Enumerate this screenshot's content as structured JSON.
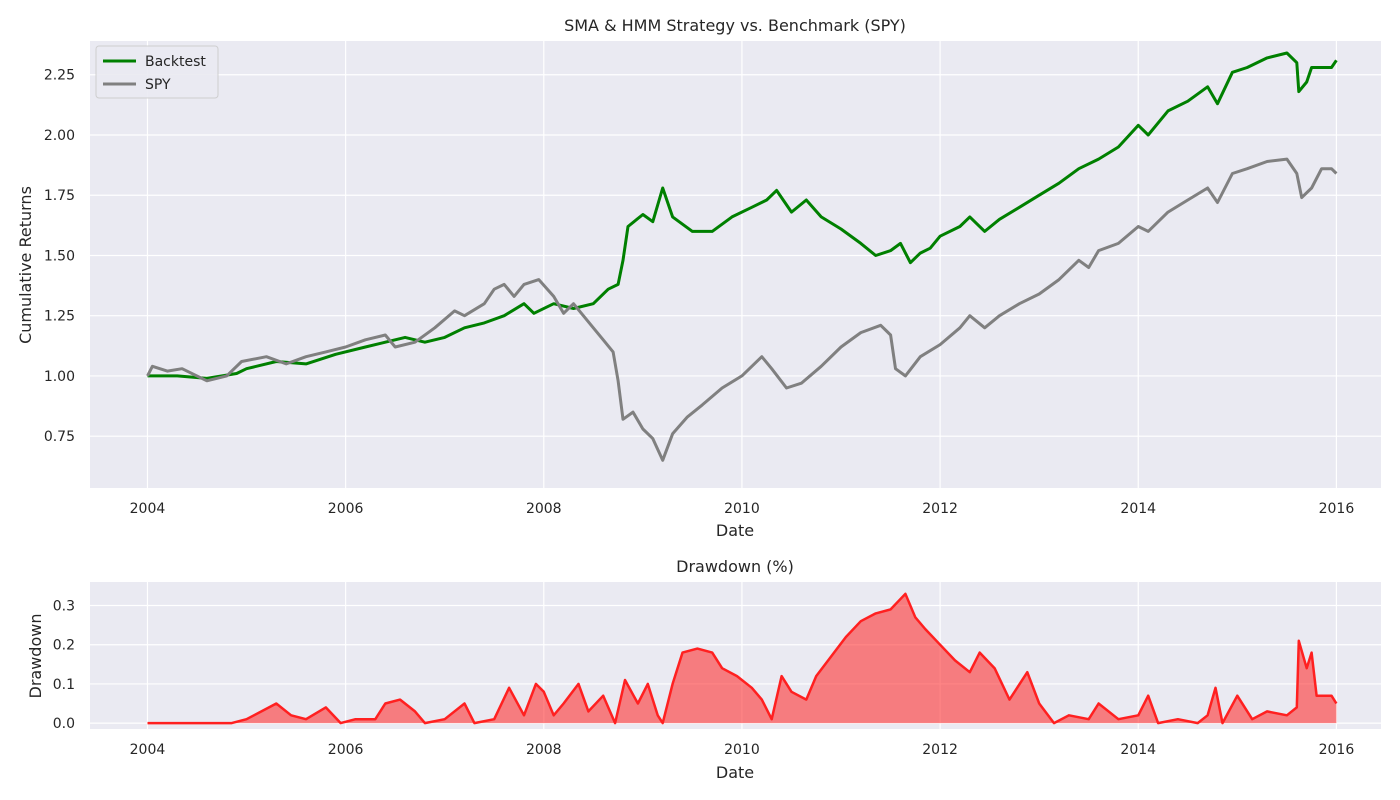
{
  "chart_data": [
    {
      "type": "line",
      "title": "SMA & HMM Strategy vs. Benchmark (SPY)",
      "xlabel": "Date",
      "ylabel": "Cumulative Returns",
      "xlim": [
        2003.42,
        2016.45
      ],
      "ylim": [
        0.535,
        2.39
      ],
      "x_ticks": [
        2004,
        2006,
        2008,
        2010,
        2012,
        2014,
        2016
      ],
      "x_tick_labels": [
        "2004",
        "2006",
        "2008",
        "2010",
        "2012",
        "2014",
        "2016"
      ],
      "y_ticks": [
        0.75,
        1.0,
        1.25,
        1.5,
        1.75,
        2.0,
        2.25
      ],
      "y_tick_labels": [
        "0.75",
        "1.00",
        "1.25",
        "1.50",
        "1.75",
        "2.00",
        "2.25"
      ],
      "grid": true,
      "legend_placement": "top-left",
      "series": [
        {
          "name": "Backtest",
          "color": "#008000",
          "points": [
            [
              2004.0,
              1.0
            ],
            [
              2004.3,
              1.0
            ],
            [
              2004.6,
              0.99
            ],
            [
              2004.9,
              1.01
            ],
            [
              2005.0,
              1.03
            ],
            [
              2005.3,
              1.06
            ],
            [
              2005.6,
              1.05
            ],
            [
              2005.9,
              1.09
            ],
            [
              2006.2,
              1.12
            ],
            [
              2006.4,
              1.14
            ],
            [
              2006.6,
              1.16
            ],
            [
              2006.8,
              1.14
            ],
            [
              2007.0,
              1.16
            ],
            [
              2007.2,
              1.2
            ],
            [
              2007.4,
              1.22
            ],
            [
              2007.6,
              1.25
            ],
            [
              2007.8,
              1.3
            ],
            [
              2007.9,
              1.26
            ],
            [
              2008.1,
              1.3
            ],
            [
              2008.3,
              1.28
            ],
            [
              2008.5,
              1.3
            ],
            [
              2008.65,
              1.36
            ],
            [
              2008.75,
              1.38
            ],
            [
              2008.8,
              1.48
            ],
            [
              2008.85,
              1.62
            ],
            [
              2009.0,
              1.67
            ],
            [
              2009.1,
              1.64
            ],
            [
              2009.2,
              1.78
            ],
            [
              2009.3,
              1.66
            ],
            [
              2009.5,
              1.6
            ],
            [
              2009.7,
              1.6
            ],
            [
              2009.9,
              1.66
            ],
            [
              2010.1,
              1.7
            ],
            [
              2010.25,
              1.73
            ],
            [
              2010.35,
              1.77
            ],
            [
              2010.5,
              1.68
            ],
            [
              2010.65,
              1.73
            ],
            [
              2010.8,
              1.66
            ],
            [
              2011.0,
              1.61
            ],
            [
              2011.2,
              1.55
            ],
            [
              2011.35,
              1.5
            ],
            [
              2011.5,
              1.52
            ],
            [
              2011.6,
              1.55
            ],
            [
              2011.7,
              1.47
            ],
            [
              2011.8,
              1.51
            ],
            [
              2011.9,
              1.53
            ],
            [
              2012.0,
              1.58
            ],
            [
              2012.2,
              1.62
            ],
            [
              2012.3,
              1.66
            ],
            [
              2012.45,
              1.6
            ],
            [
              2012.6,
              1.65
            ],
            [
              2012.8,
              1.7
            ],
            [
              2013.0,
              1.75
            ],
            [
              2013.2,
              1.8
            ],
            [
              2013.4,
              1.86
            ],
            [
              2013.6,
              1.9
            ],
            [
              2013.8,
              1.95
            ],
            [
              2014.0,
              2.04
            ],
            [
              2014.1,
              2.0
            ],
            [
              2014.3,
              2.1
            ],
            [
              2014.5,
              2.14
            ],
            [
              2014.7,
              2.2
            ],
            [
              2014.8,
              2.13
            ],
            [
              2014.95,
              2.26
            ],
            [
              2015.1,
              2.28
            ],
            [
              2015.3,
              2.32
            ],
            [
              2015.5,
              2.34
            ],
            [
              2015.6,
              2.3
            ],
            [
              2015.62,
              2.18
            ],
            [
              2015.7,
              2.22
            ],
            [
              2015.75,
              2.28
            ],
            [
              2015.85,
              2.28
            ],
            [
              2015.95,
              2.28
            ],
            [
              2016.0,
              2.31
            ]
          ]
        },
        {
          "name": "SPY",
          "color": "#808080",
          "points": [
            [
              2004.0,
              1.0
            ],
            [
              2004.05,
              1.04
            ],
            [
              2004.2,
              1.02
            ],
            [
              2004.35,
              1.03
            ],
            [
              2004.6,
              0.98
            ],
            [
              2004.8,
              1.0
            ],
            [
              2004.95,
              1.06
            ],
            [
              2005.2,
              1.08
            ],
            [
              2005.4,
              1.05
            ],
            [
              2005.6,
              1.08
            ],
            [
              2005.8,
              1.1
            ],
            [
              2006.0,
              1.12
            ],
            [
              2006.2,
              1.15
            ],
            [
              2006.4,
              1.17
            ],
            [
              2006.5,
              1.12
            ],
            [
              2006.7,
              1.14
            ],
            [
              2006.9,
              1.2
            ],
            [
              2007.1,
              1.27
            ],
            [
              2007.2,
              1.25
            ],
            [
              2007.4,
              1.3
            ],
            [
              2007.5,
              1.36
            ],
            [
              2007.6,
              1.38
            ],
            [
              2007.7,
              1.33
            ],
            [
              2007.8,
              1.38
            ],
            [
              2007.95,
              1.4
            ],
            [
              2008.1,
              1.33
            ],
            [
              2008.2,
              1.26
            ],
            [
              2008.3,
              1.3
            ],
            [
              2008.5,
              1.2
            ],
            [
              2008.6,
              1.15
            ],
            [
              2008.7,
              1.1
            ],
            [
              2008.75,
              0.98
            ],
            [
              2008.8,
              0.82
            ],
            [
              2008.9,
              0.85
            ],
            [
              2009.0,
              0.78
            ],
            [
              2009.1,
              0.74
            ],
            [
              2009.2,
              0.65
            ],
            [
              2009.3,
              0.76
            ],
            [
              2009.45,
              0.83
            ],
            [
              2009.6,
              0.88
            ],
            [
              2009.8,
              0.95
            ],
            [
              2010.0,
              1.0
            ],
            [
              2010.2,
              1.08
            ],
            [
              2010.3,
              1.03
            ],
            [
              2010.45,
              0.95
            ],
            [
              2010.6,
              0.97
            ],
            [
              2010.8,
              1.04
            ],
            [
              2011.0,
              1.12
            ],
            [
              2011.2,
              1.18
            ],
            [
              2011.4,
              1.21
            ],
            [
              2011.5,
              1.17
            ],
            [
              2011.55,
              1.03
            ],
            [
              2011.65,
              1.0
            ],
            [
              2011.8,
              1.08
            ],
            [
              2012.0,
              1.13
            ],
            [
              2012.2,
              1.2
            ],
            [
              2012.3,
              1.25
            ],
            [
              2012.45,
              1.2
            ],
            [
              2012.6,
              1.25
            ],
            [
              2012.8,
              1.3
            ],
            [
              2013.0,
              1.34
            ],
            [
              2013.2,
              1.4
            ],
            [
              2013.4,
              1.48
            ],
            [
              2013.5,
              1.45
            ],
            [
              2013.6,
              1.52
            ],
            [
              2013.8,
              1.55
            ],
            [
              2014.0,
              1.62
            ],
            [
              2014.1,
              1.6
            ],
            [
              2014.3,
              1.68
            ],
            [
              2014.5,
              1.73
            ],
            [
              2014.7,
              1.78
            ],
            [
              2014.8,
              1.72
            ],
            [
              2014.95,
              1.84
            ],
            [
              2015.1,
              1.86
            ],
            [
              2015.3,
              1.89
            ],
            [
              2015.5,
              1.9
            ],
            [
              2015.6,
              1.84
            ],
            [
              2015.65,
              1.74
            ],
            [
              2015.75,
              1.78
            ],
            [
              2015.85,
              1.86
            ],
            [
              2015.95,
              1.86
            ],
            [
              2016.0,
              1.84
            ]
          ]
        }
      ]
    },
    {
      "type": "area",
      "title": "Drawdown (%)",
      "xlabel": "Date",
      "ylabel": "Drawdown",
      "xlim": [
        2003.42,
        2016.45
      ],
      "ylim": [
        -0.015,
        0.36
      ],
      "x_ticks": [
        2004,
        2006,
        2008,
        2010,
        2012,
        2014,
        2016
      ],
      "x_tick_labels": [
        "2004",
        "2006",
        "2008",
        "2010",
        "2012",
        "2014",
        "2016"
      ],
      "y_ticks": [
        0.0,
        0.1,
        0.2,
        0.3
      ],
      "y_tick_labels": [
        "0.0",
        "0.1",
        "0.2",
        "0.3"
      ],
      "grid": true,
      "series": [
        {
          "color": "#ff2020",
          "points": [
            [
              2004.0,
              0.0
            ],
            [
              2004.85,
              0.0
            ],
            [
              2005.0,
              0.01
            ],
            [
              2005.15,
              0.03
            ],
            [
              2005.3,
              0.05
            ],
            [
              2005.45,
              0.02
            ],
            [
              2005.6,
              0.01
            ],
            [
              2005.8,
              0.04
            ],
            [
              2005.95,
              0.0
            ],
            [
              2006.1,
              0.01
            ],
            [
              2006.3,
              0.01
            ],
            [
              2006.4,
              0.05
            ],
            [
              2006.55,
              0.06
            ],
            [
              2006.7,
              0.03
            ],
            [
              2006.8,
              0.0
            ],
            [
              2007.0,
              0.01
            ],
            [
              2007.2,
              0.05
            ],
            [
              2007.3,
              0.0
            ],
            [
              2007.5,
              0.01
            ],
            [
              2007.65,
              0.09
            ],
            [
              2007.8,
              0.02
            ],
            [
              2007.92,
              0.1
            ],
            [
              2008.0,
              0.08
            ],
            [
              2008.1,
              0.02
            ],
            [
              2008.2,
              0.05
            ],
            [
              2008.35,
              0.1
            ],
            [
              2008.45,
              0.03
            ],
            [
              2008.6,
              0.07
            ],
            [
              2008.72,
              0.0
            ],
            [
              2008.82,
              0.11
            ],
            [
              2008.95,
              0.05
            ],
            [
              2009.05,
              0.1
            ],
            [
              2009.15,
              0.02
            ],
            [
              2009.2,
              0.0
            ],
            [
              2009.3,
              0.1
            ],
            [
              2009.4,
              0.18
            ],
            [
              2009.55,
              0.19
            ],
            [
              2009.7,
              0.18
            ],
            [
              2009.8,
              0.14
            ],
            [
              2009.95,
              0.12
            ],
            [
              2010.1,
              0.09
            ],
            [
              2010.2,
              0.06
            ],
            [
              2010.3,
              0.01
            ],
            [
              2010.4,
              0.12
            ],
            [
              2010.5,
              0.08
            ],
            [
              2010.65,
              0.06
            ],
            [
              2010.75,
              0.12
            ],
            [
              2010.9,
              0.17
            ],
            [
              2011.05,
              0.22
            ],
            [
              2011.2,
              0.26
            ],
            [
              2011.35,
              0.28
            ],
            [
              2011.5,
              0.29
            ],
            [
              2011.65,
              0.33
            ],
            [
              2011.75,
              0.27
            ],
            [
              2011.85,
              0.24
            ],
            [
              2012.0,
              0.2
            ],
            [
              2012.15,
              0.16
            ],
            [
              2012.3,
              0.13
            ],
            [
              2012.4,
              0.18
            ],
            [
              2012.55,
              0.14
            ],
            [
              2012.7,
              0.06
            ],
            [
              2012.88,
              0.13
            ],
            [
              2013.0,
              0.05
            ],
            [
              2013.15,
              0.0
            ],
            [
              2013.3,
              0.02
            ],
            [
              2013.5,
              0.01
            ],
            [
              2013.6,
              0.05
            ],
            [
              2013.8,
              0.01
            ],
            [
              2014.0,
              0.02
            ],
            [
              2014.1,
              0.07
            ],
            [
              2014.2,
              0.0
            ],
            [
              2014.4,
              0.01
            ],
            [
              2014.6,
              0.0
            ],
            [
              2014.7,
              0.02
            ],
            [
              2014.78,
              0.09
            ],
            [
              2014.85,
              0.0
            ],
            [
              2015.0,
              0.07
            ],
            [
              2015.15,
              0.01
            ],
            [
              2015.3,
              0.03
            ],
            [
              2015.5,
              0.02
            ],
            [
              2015.6,
              0.04
            ],
            [
              2015.62,
              0.21
            ],
            [
              2015.7,
              0.14
            ],
            [
              2015.75,
              0.18
            ],
            [
              2015.8,
              0.07
            ],
            [
              2015.95,
              0.07
            ],
            [
              2016.0,
              0.05
            ]
          ]
        }
      ]
    }
  ]
}
